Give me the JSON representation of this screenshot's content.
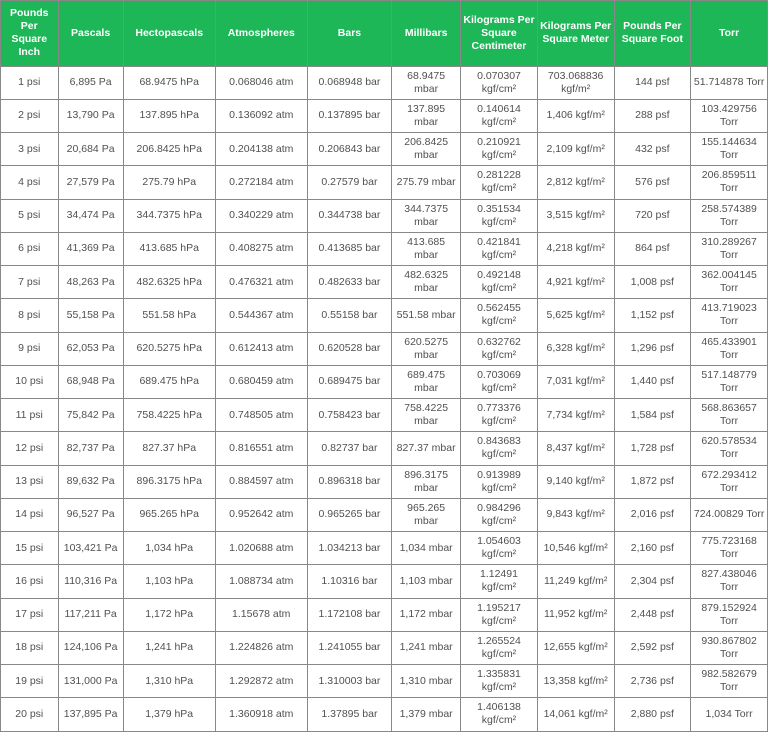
{
  "table": {
    "header_bg": "#1eb758",
    "header_fg": "#ffffff",
    "border_color": "#888888",
    "cell_fg": "#505050",
    "columns": [
      {
        "key": "psi",
        "label": "Pounds Per Square Inch"
      },
      {
        "key": "pa",
        "label": "Pascals"
      },
      {
        "key": "hpa",
        "label": "Hectopascals"
      },
      {
        "key": "atm",
        "label": "Atmospheres"
      },
      {
        "key": "bar",
        "label": "Bars"
      },
      {
        "key": "mbar",
        "label": "Millibars"
      },
      {
        "key": "kgcm",
        "label": "Kilograms Per Square Centimeter"
      },
      {
        "key": "kgm",
        "label": "Kilograms Per Square Meter"
      },
      {
        "key": "psf",
        "label": "Pounds Per Square Foot"
      },
      {
        "key": "torr",
        "label": "Torr"
      }
    ],
    "rows": [
      {
        "psi": "1 psi",
        "pa": "6,895 Pa",
        "hpa": "68.9475 hPa",
        "atm": "0.068046 atm",
        "bar": "0.068948 bar",
        "mbar": "68.9475 mbar",
        "kgcm": "0.070307 kgf/cm²",
        "kgm": "703.068836 kgf/m²",
        "psf": "144 psf",
        "torr": "51.714878 Torr"
      },
      {
        "psi": "2 psi",
        "pa": "13,790 Pa",
        "hpa": "137.895 hPa",
        "atm": "0.136092 atm",
        "bar": "0.137895 bar",
        "mbar": "137.895 mbar",
        "kgcm": "0.140614 kgf/cm²",
        "kgm": "1,406 kgf/m²",
        "psf": "288 psf",
        "torr": "103.429756 Torr"
      },
      {
        "psi": "3 psi",
        "pa": "20,684 Pa",
        "hpa": "206.8425 hPa",
        "atm": "0.204138 atm",
        "bar": "0.206843 bar",
        "mbar": "206.8425 mbar",
        "kgcm": "0.210921 kgf/cm²",
        "kgm": "2,109 kgf/m²",
        "psf": "432 psf",
        "torr": "155.144634 Torr"
      },
      {
        "psi": "4 psi",
        "pa": "27,579 Pa",
        "hpa": "275.79 hPa",
        "atm": "0.272184 atm",
        "bar": "0.27579 bar",
        "mbar": "275.79 mbar",
        "kgcm": "0.281228 kgf/cm²",
        "kgm": "2,812 kgf/m²",
        "psf": "576 psf",
        "torr": "206.859511 Torr"
      },
      {
        "psi": "5 psi",
        "pa": "34,474 Pa",
        "hpa": "344.7375 hPa",
        "atm": "0.340229 atm",
        "bar": "0.344738 bar",
        "mbar": "344.7375 mbar",
        "kgcm": "0.351534 kgf/cm²",
        "kgm": "3,515 kgf/m²",
        "psf": "720 psf",
        "torr": "258.574389 Torr"
      },
      {
        "psi": "6 psi",
        "pa": "41,369 Pa",
        "hpa": "413.685 hPa",
        "atm": "0.408275 atm",
        "bar": "0.413685 bar",
        "mbar": "413.685 mbar",
        "kgcm": "0.421841 kgf/cm²",
        "kgm": "4,218 kgf/m²",
        "psf": "864 psf",
        "torr": "310.289267 Torr"
      },
      {
        "psi": "7 psi",
        "pa": "48,263 Pa",
        "hpa": "482.6325 hPa",
        "atm": "0.476321 atm",
        "bar": "0.482633 bar",
        "mbar": "482.6325 mbar",
        "kgcm": "0.492148 kgf/cm²",
        "kgm": "4,921 kgf/m²",
        "psf": "1,008 psf",
        "torr": "362.004145 Torr"
      },
      {
        "psi": "8 psi",
        "pa": "55,158 Pa",
        "hpa": "551.58 hPa",
        "atm": "0.544367 atm",
        "bar": "0.55158 bar",
        "mbar": "551.58 mbar",
        "kgcm": "0.562455 kgf/cm²",
        "kgm": "5,625 kgf/m²",
        "psf": "1,152 psf",
        "torr": "413.719023 Torr"
      },
      {
        "psi": "9 psi",
        "pa": "62,053 Pa",
        "hpa": "620.5275 hPa",
        "atm": "0.612413 atm",
        "bar": "0.620528 bar",
        "mbar": "620.5275 mbar",
        "kgcm": "0.632762 kgf/cm²",
        "kgm": "6,328 kgf/m²",
        "psf": "1,296 psf",
        "torr": "465.433901 Torr"
      },
      {
        "psi": "10 psi",
        "pa": "68,948 Pa",
        "hpa": "689.475 hPa",
        "atm": "0.680459 atm",
        "bar": "0.689475 bar",
        "mbar": "689.475 mbar",
        "kgcm": "0.703069 kgf/cm²",
        "kgm": "7,031 kgf/m²",
        "psf": "1,440 psf",
        "torr": "517.148779 Torr"
      },
      {
        "psi": "11 psi",
        "pa": "75,842 Pa",
        "hpa": "758.4225 hPa",
        "atm": "0.748505 atm",
        "bar": "0.758423 bar",
        "mbar": "758.4225 mbar",
        "kgcm": "0.773376 kgf/cm²",
        "kgm": "7,734 kgf/m²",
        "psf": "1,584 psf",
        "torr": "568.863657 Torr"
      },
      {
        "psi": "12 psi",
        "pa": "82,737 Pa",
        "hpa": "827.37 hPa",
        "atm": "0.816551 atm",
        "bar": "0.82737 bar",
        "mbar": "827.37 mbar",
        "kgcm": "0.843683 kgf/cm²",
        "kgm": "8,437 kgf/m²",
        "psf": "1,728 psf",
        "torr": "620.578534 Torr"
      },
      {
        "psi": "13 psi",
        "pa": "89,632 Pa",
        "hpa": "896.3175 hPa",
        "atm": "0.884597 atm",
        "bar": "0.896318 bar",
        "mbar": "896.3175 mbar",
        "kgcm": "0.913989 kgf/cm²",
        "kgm": "9,140 kgf/m²",
        "psf": "1,872 psf",
        "torr": "672.293412 Torr"
      },
      {
        "psi": "14 psi",
        "pa": "96,527 Pa",
        "hpa": "965.265 hPa",
        "atm": "0.952642 atm",
        "bar": "0.965265 bar",
        "mbar": "965.265 mbar",
        "kgcm": "0.984296 kgf/cm²",
        "kgm": "9,843 kgf/m²",
        "psf": "2,016 psf",
        "torr": "724.00829 Torr"
      },
      {
        "psi": "15 psi",
        "pa": "103,421 Pa",
        "hpa": "1,034 hPa",
        "atm": "1.020688 atm",
        "bar": "1.034213 bar",
        "mbar": "1,034 mbar",
        "kgcm": "1.054603 kgf/cm²",
        "kgm": "10,546 kgf/m²",
        "psf": "2,160 psf",
        "torr": "775.723168 Torr"
      },
      {
        "psi": "16 psi",
        "pa": "110,316 Pa",
        "hpa": "1,103 hPa",
        "atm": "1.088734 atm",
        "bar": "1.10316 bar",
        "mbar": "1,103 mbar",
        "kgcm": "1.12491 kgf/cm²",
        "kgm": "11,249 kgf/m²",
        "psf": "2,304 psf",
        "torr": "827.438046 Torr"
      },
      {
        "psi": "17 psi",
        "pa": "117,211 Pa",
        "hpa": "1,172 hPa",
        "atm": "1.15678 atm",
        "bar": "1.172108 bar",
        "mbar": "1,172 mbar",
        "kgcm": "1.195217 kgf/cm²",
        "kgm": "11,952 kgf/m²",
        "psf": "2,448 psf",
        "torr": "879.152924 Torr"
      },
      {
        "psi": "18 psi",
        "pa": "124,106 Pa",
        "hpa": "1,241 hPa",
        "atm": "1.224826 atm",
        "bar": "1.241055 bar",
        "mbar": "1,241 mbar",
        "kgcm": "1.265524 kgf/cm²",
        "kgm": "12,655 kgf/m²",
        "psf": "2,592 psf",
        "torr": "930.867802 Torr"
      },
      {
        "psi": "19 psi",
        "pa": "131,000 Pa",
        "hpa": "1,310 hPa",
        "atm": "1.292872 atm",
        "bar": "1.310003 bar",
        "mbar": "1,310 mbar",
        "kgcm": "1.335831 kgf/cm²",
        "kgm": "13,358 kgf/m²",
        "psf": "2,736 psf",
        "torr": "982.582679 Torr"
      },
      {
        "psi": "20 psi",
        "pa": "137,895 Pa",
        "hpa": "1,379 hPa",
        "atm": "1.360918 atm",
        "bar": "1.37895 bar",
        "mbar": "1,379 mbar",
        "kgcm": "1.406138 kgf/cm²",
        "kgm": "14,061 kgf/m²",
        "psf": "2,880 psf",
        "torr": "1,034 Torr"
      }
    ]
  }
}
